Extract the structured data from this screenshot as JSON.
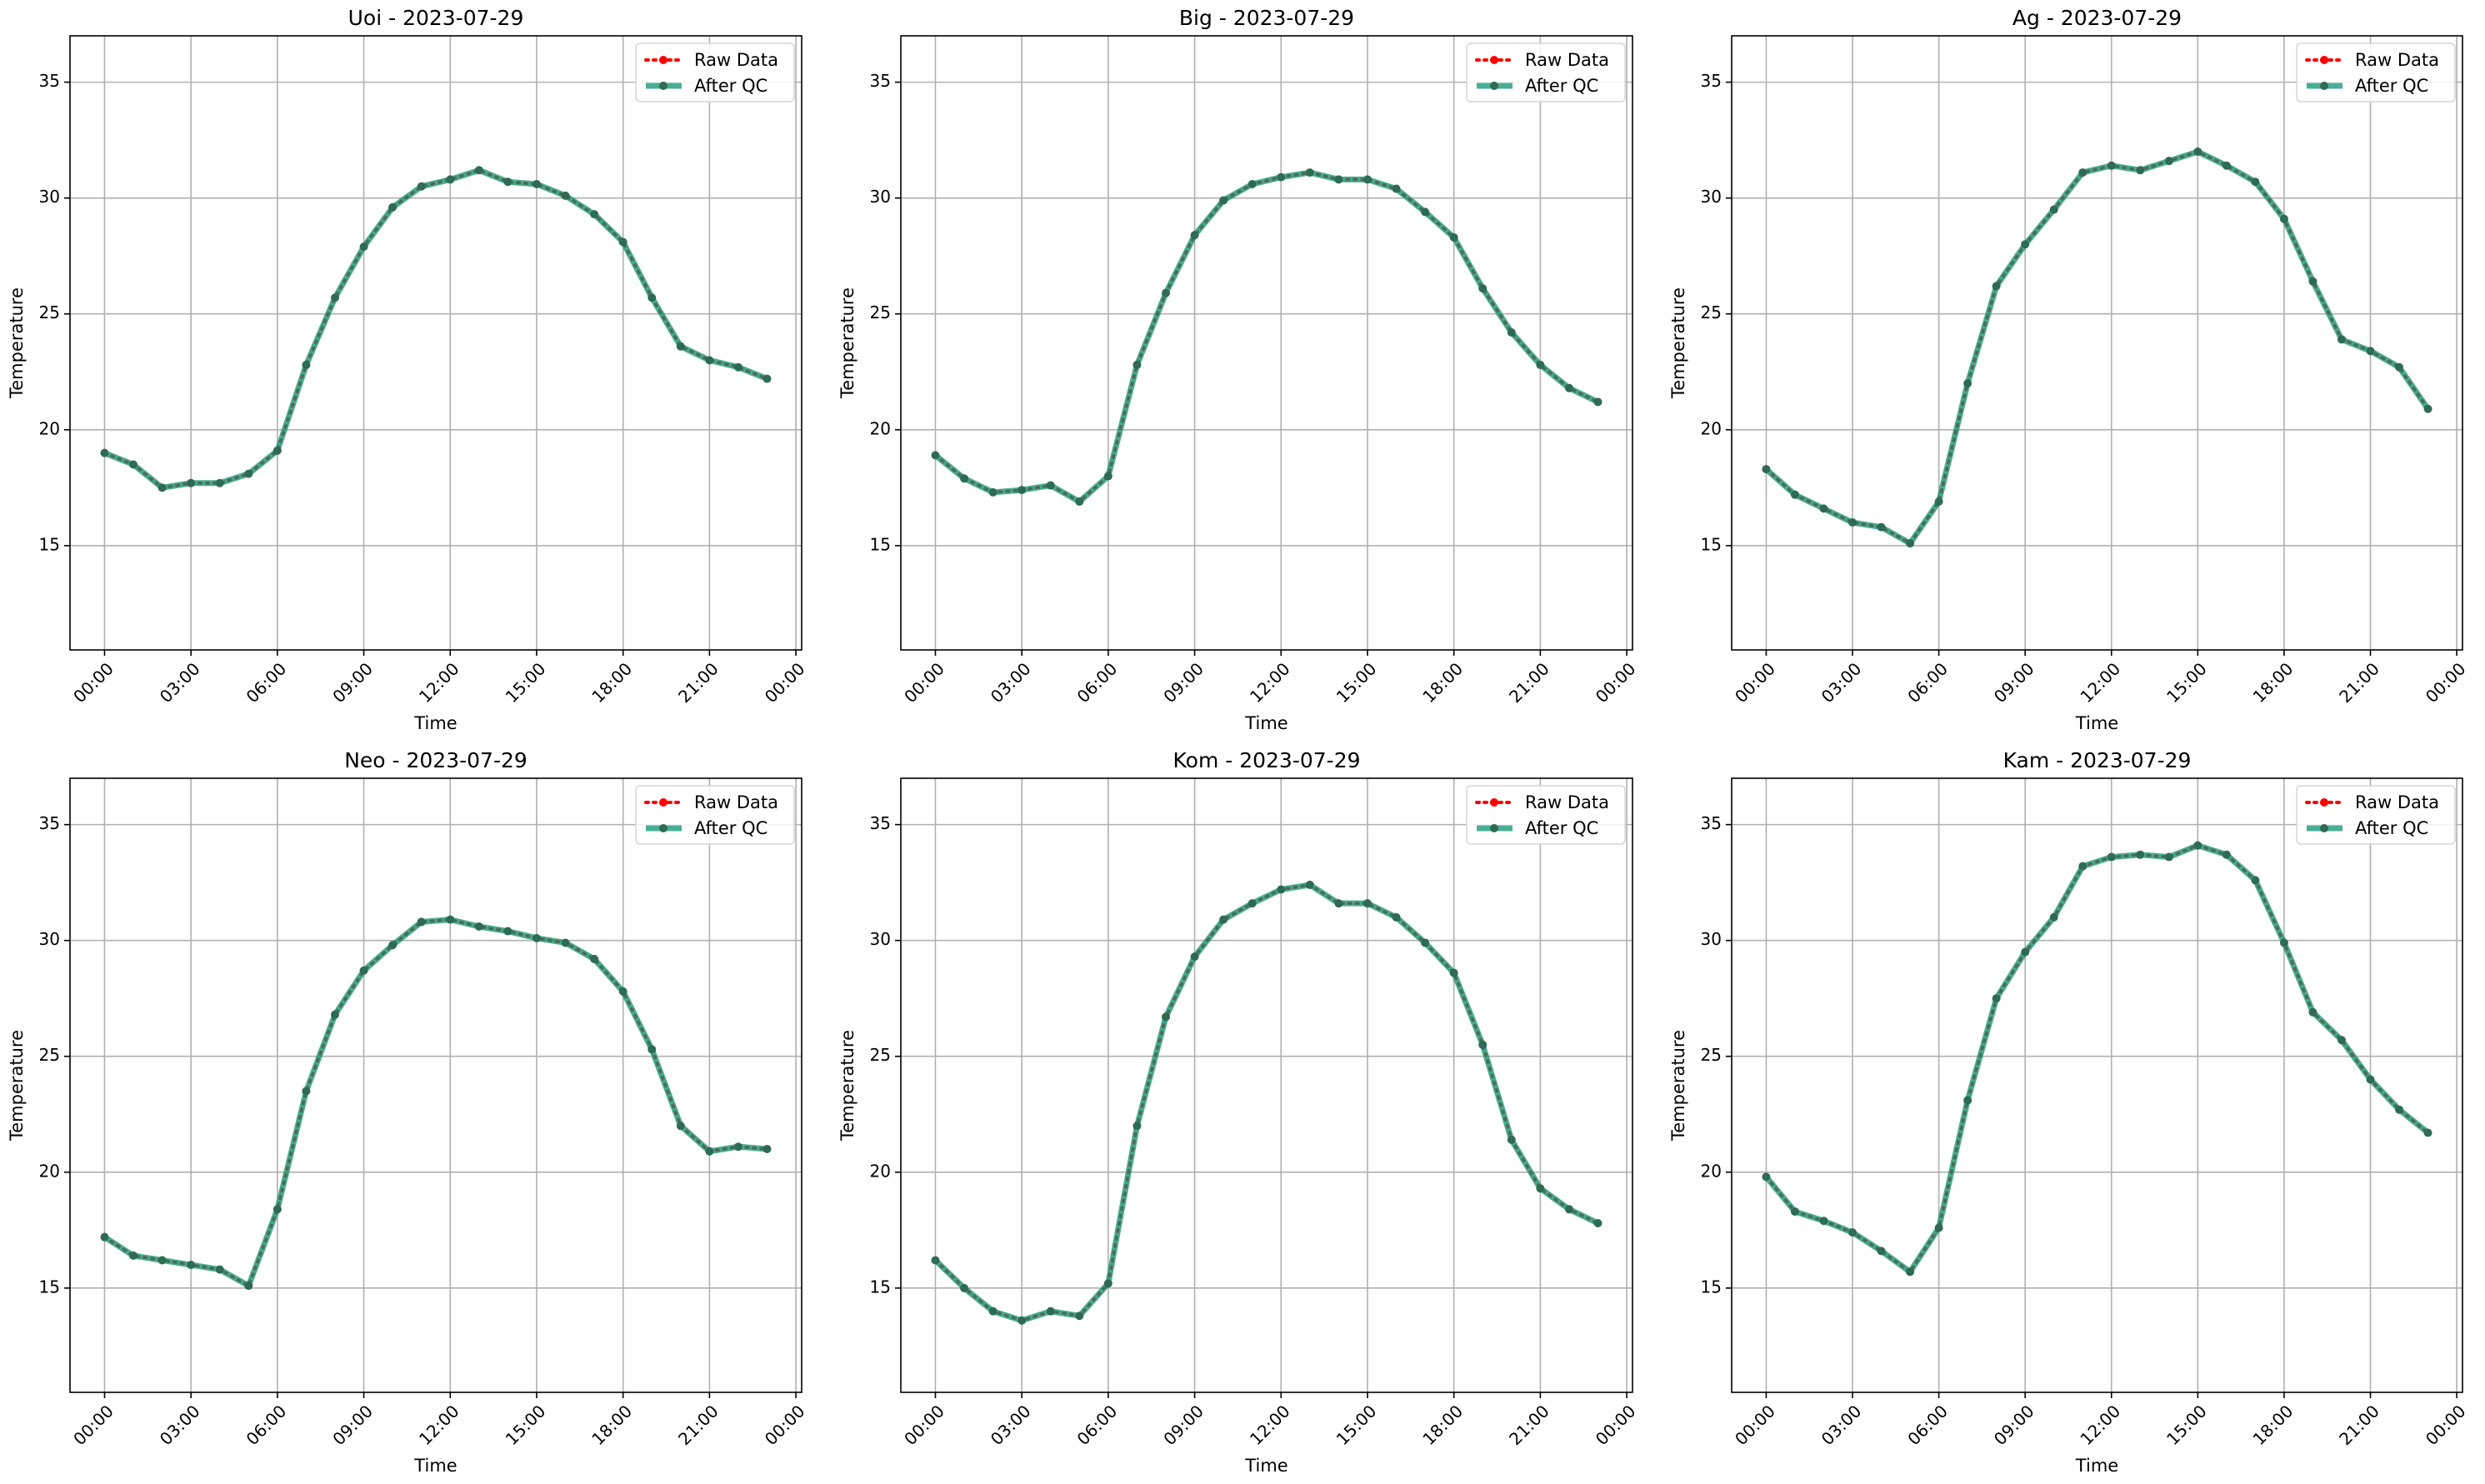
{
  "legend": {
    "raw_label": "Raw Data",
    "qc_label": "After QC",
    "placement": "top-right"
  },
  "colors": {
    "raw": "#ff0000",
    "qc": "#1b9a78",
    "grid": "#b0b0b0",
    "axes": "#000000"
  },
  "chart_data": [
    {
      "type": "line",
      "title": "Uoi - 2023-07-29",
      "xlabel": "Time",
      "ylabel": "Temperature",
      "x": [
        0,
        1,
        2,
        3,
        4,
        5,
        6,
        7,
        8,
        9,
        10,
        11,
        12,
        13,
        14,
        15,
        16,
        17,
        18,
        19,
        20,
        21,
        22,
        23
      ],
      "xlim": [
        -1.2,
        24.2
      ],
      "ylim": [
        10.5,
        37
      ],
      "xticks": [
        0,
        3,
        6,
        9,
        12,
        15,
        18,
        21,
        24
      ],
      "xtick_labels": [
        "00:00",
        "03:00",
        "06:00",
        "09:00",
        "12:00",
        "15:00",
        "18:00",
        "21:00",
        "00:00"
      ],
      "yticks": [
        15,
        20,
        25,
        30,
        35
      ],
      "grid": true,
      "series": [
        {
          "name": "Raw Data",
          "values": [
            19.0,
            18.5,
            17.5,
            17.7,
            17.7,
            18.1,
            19.1,
            22.8,
            25.7,
            27.9,
            29.6,
            30.5,
            30.8,
            31.2,
            30.7,
            30.6,
            30.1,
            29.3,
            28.1,
            25.7,
            23.6,
            23.0,
            22.7,
            22.2
          ]
        },
        {
          "name": "After QC",
          "values": [
            19.0,
            18.5,
            17.5,
            17.7,
            17.7,
            18.1,
            19.1,
            22.8,
            25.7,
            27.9,
            29.6,
            30.5,
            30.8,
            31.2,
            30.7,
            30.6,
            30.1,
            29.3,
            28.1,
            25.7,
            23.6,
            23.0,
            22.7,
            22.2
          ]
        }
      ]
    },
    {
      "type": "line",
      "title": "Big - 2023-07-29",
      "xlabel": "Time",
      "ylabel": "Temperature",
      "x": [
        0,
        1,
        2,
        3,
        4,
        5,
        6,
        7,
        8,
        9,
        10,
        11,
        12,
        13,
        14,
        15,
        16,
        17,
        18,
        19,
        20,
        21,
        22,
        23
      ],
      "xlim": [
        -1.2,
        24.2
      ],
      "ylim": [
        10.5,
        37
      ],
      "xticks": [
        0,
        3,
        6,
        9,
        12,
        15,
        18,
        21,
        24
      ],
      "xtick_labels": [
        "00:00",
        "03:00",
        "06:00",
        "09:00",
        "12:00",
        "15:00",
        "18:00",
        "21:00",
        "00:00"
      ],
      "yticks": [
        15,
        20,
        25,
        30,
        35
      ],
      "grid": true,
      "series": [
        {
          "name": "Raw Data",
          "values": [
            18.9,
            17.9,
            17.3,
            17.4,
            17.6,
            16.9,
            18.0,
            22.8,
            25.9,
            28.4,
            29.9,
            30.6,
            30.9,
            31.1,
            30.8,
            30.8,
            30.4,
            29.4,
            28.3,
            26.1,
            24.2,
            22.8,
            21.8,
            21.2
          ]
        },
        {
          "name": "After QC",
          "values": [
            18.9,
            17.9,
            17.3,
            17.4,
            17.6,
            16.9,
            18.0,
            22.8,
            25.9,
            28.4,
            29.9,
            30.6,
            30.9,
            31.1,
            30.8,
            30.8,
            30.4,
            29.4,
            28.3,
            26.1,
            24.2,
            22.8,
            21.8,
            21.2
          ]
        }
      ]
    },
    {
      "type": "line",
      "title": "Ag - 2023-07-29",
      "xlabel": "Time",
      "ylabel": "Temperature",
      "x": [
        0,
        1,
        2,
        3,
        4,
        5,
        6,
        7,
        8,
        9,
        10,
        11,
        12,
        13,
        14,
        15,
        16,
        17,
        18,
        19,
        20,
        21,
        22,
        23
      ],
      "xlim": [
        -1.2,
        24.2
      ],
      "ylim": [
        10.5,
        37
      ],
      "xticks": [
        0,
        3,
        6,
        9,
        12,
        15,
        18,
        21,
        24
      ],
      "xtick_labels": [
        "00:00",
        "03:00",
        "06:00",
        "09:00",
        "12:00",
        "15:00",
        "18:00",
        "21:00",
        "00:00"
      ],
      "yticks": [
        15,
        20,
        25,
        30,
        35
      ],
      "grid": true,
      "series": [
        {
          "name": "Raw Data",
          "values": [
            18.3,
            17.2,
            16.6,
            16.0,
            15.8,
            15.1,
            16.9,
            22.0,
            26.2,
            28.0,
            29.5,
            31.1,
            31.4,
            31.2,
            31.6,
            32.0,
            31.4,
            30.7,
            29.1,
            26.4,
            23.9,
            23.4,
            22.7,
            20.9
          ]
        },
        {
          "name": "After QC",
          "values": [
            18.3,
            17.2,
            16.6,
            16.0,
            15.8,
            15.1,
            16.9,
            22.0,
            26.2,
            28.0,
            29.5,
            31.1,
            31.4,
            31.2,
            31.6,
            32.0,
            31.4,
            30.7,
            29.1,
            26.4,
            23.9,
            23.4,
            22.7,
            20.9
          ]
        }
      ]
    },
    {
      "type": "line",
      "title": "Neo - 2023-07-29",
      "xlabel": "Time",
      "ylabel": "Temperature",
      "x": [
        0,
        1,
        2,
        3,
        4,
        5,
        6,
        7,
        8,
        9,
        10,
        11,
        12,
        13,
        14,
        15,
        16,
        17,
        18,
        19,
        20,
        21,
        22,
        23
      ],
      "xlim": [
        -1.2,
        24.2
      ],
      "ylim": [
        10.5,
        37
      ],
      "xticks": [
        0,
        3,
        6,
        9,
        12,
        15,
        18,
        21,
        24
      ],
      "xtick_labels": [
        "00:00",
        "03:00",
        "06:00",
        "09:00",
        "12:00",
        "15:00",
        "18:00",
        "21:00",
        "00:00"
      ],
      "yticks": [
        15,
        20,
        25,
        30,
        35
      ],
      "grid": true,
      "series": [
        {
          "name": "Raw Data",
          "values": [
            17.2,
            16.4,
            16.2,
            16.0,
            15.8,
            15.1,
            18.4,
            23.5,
            26.8,
            28.7,
            29.8,
            30.8,
            30.9,
            30.6,
            30.4,
            30.1,
            29.9,
            29.2,
            27.8,
            25.3,
            22.0,
            20.9,
            21.1,
            21.0
          ]
        },
        {
          "name": "After QC",
          "values": [
            17.2,
            16.4,
            16.2,
            16.0,
            15.8,
            15.1,
            18.4,
            23.5,
            26.8,
            28.7,
            29.8,
            30.8,
            30.9,
            30.6,
            30.4,
            30.1,
            29.9,
            29.2,
            27.8,
            25.3,
            22.0,
            20.9,
            21.1,
            21.0
          ]
        }
      ]
    },
    {
      "type": "line",
      "title": "Kom - 2023-07-29",
      "xlabel": "Time",
      "ylabel": "Temperature",
      "x": [
        0,
        1,
        2,
        3,
        4,
        5,
        6,
        7,
        8,
        9,
        10,
        11,
        12,
        13,
        14,
        15,
        16,
        17,
        18,
        19,
        20,
        21,
        22,
        23
      ],
      "xlim": [
        -1.2,
        24.2
      ],
      "ylim": [
        10.5,
        37
      ],
      "xticks": [
        0,
        3,
        6,
        9,
        12,
        15,
        18,
        21,
        24
      ],
      "xtick_labels": [
        "00:00",
        "03:00",
        "06:00",
        "09:00",
        "12:00",
        "15:00",
        "18:00",
        "21:00",
        "00:00"
      ],
      "yticks": [
        15,
        20,
        25,
        30,
        35
      ],
      "grid": true,
      "series": [
        {
          "name": "Raw Data",
          "values": [
            16.2,
            15.0,
            14.0,
            13.6,
            14.0,
            13.8,
            15.2,
            22.0,
            26.7,
            29.3,
            30.9,
            31.6,
            32.2,
            32.4,
            31.6,
            31.6,
            31.0,
            29.9,
            28.6,
            25.5,
            21.4,
            19.3,
            18.4,
            17.8
          ]
        },
        {
          "name": "After QC",
          "values": [
            16.2,
            15.0,
            14.0,
            13.6,
            14.0,
            13.8,
            15.2,
            22.0,
            26.7,
            29.3,
            30.9,
            31.6,
            32.2,
            32.4,
            31.6,
            31.6,
            31.0,
            29.9,
            28.6,
            25.5,
            21.4,
            19.3,
            18.4,
            17.8
          ]
        }
      ]
    },
    {
      "type": "line",
      "title": "Kam - 2023-07-29",
      "xlabel": "Time",
      "ylabel": "Temperature",
      "x": [
        0,
        1,
        2,
        3,
        4,
        5,
        6,
        7,
        8,
        9,
        10,
        11,
        12,
        13,
        14,
        15,
        16,
        17,
        18,
        19,
        20,
        21,
        22,
        23
      ],
      "xlim": [
        -1.2,
        24.2
      ],
      "ylim": [
        10.5,
        37
      ],
      "xticks": [
        0,
        3,
        6,
        9,
        12,
        15,
        18,
        21,
        24
      ],
      "xtick_labels": [
        "00:00",
        "03:00",
        "06:00",
        "09:00",
        "12:00",
        "15:00",
        "18:00",
        "21:00",
        "00:00"
      ],
      "yticks": [
        15,
        20,
        25,
        30,
        35
      ],
      "grid": true,
      "series": [
        {
          "name": "Raw Data",
          "values": [
            19.8,
            18.3,
            17.9,
            17.4,
            16.6,
            15.7,
            17.6,
            23.1,
            27.5,
            29.5,
            31.0,
            33.2,
            33.6,
            33.7,
            33.6,
            34.1,
            33.7,
            32.6,
            29.9,
            26.9,
            25.7,
            24.0,
            22.7,
            21.7
          ]
        },
        {
          "name": "After QC",
          "values": [
            19.8,
            18.3,
            17.9,
            17.4,
            16.6,
            15.7,
            17.6,
            23.1,
            27.5,
            29.5,
            31.0,
            33.2,
            33.6,
            33.7,
            33.6,
            34.1,
            33.7,
            32.6,
            29.9,
            26.9,
            25.7,
            24.0,
            22.7,
            21.7
          ]
        }
      ]
    }
  ]
}
